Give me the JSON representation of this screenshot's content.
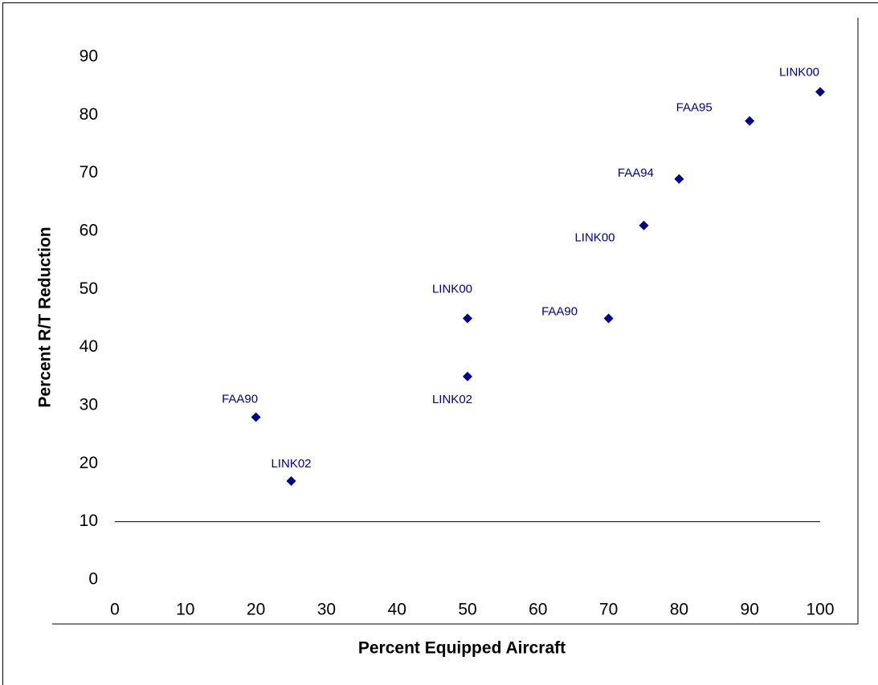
{
  "chart_data": {
    "type": "scatter",
    "x_label": "Percent Equipped Aircraft",
    "y_label": "Percent R/T Reduction",
    "series": [
      {
        "color": "#000080",
        "x": [
          20,
          25,
          50,
          50,
          70,
          75,
          80,
          90,
          100
        ],
        "values": [
          28,
          17,
          45,
          35,
          45,
          61,
          69,
          79,
          84
        ],
        "labels": [
          "FAA90",
          "LINK02",
          "LINK00",
          "LINK02",
          "FAA90",
          "LINK00",
          "FAA94",
          "FAA95",
          "LINK00"
        ]
      }
    ],
    "xlim": [
      0,
      100
    ],
    "ylim": [
      0,
      90
    ],
    "xticks": [
      0,
      10,
      20,
      30,
      40,
      50,
      60,
      70,
      80,
      90,
      100
    ],
    "yticks": [
      0,
      10,
      20,
      30,
      40,
      50,
      60,
      70,
      80,
      90
    ]
  }
}
